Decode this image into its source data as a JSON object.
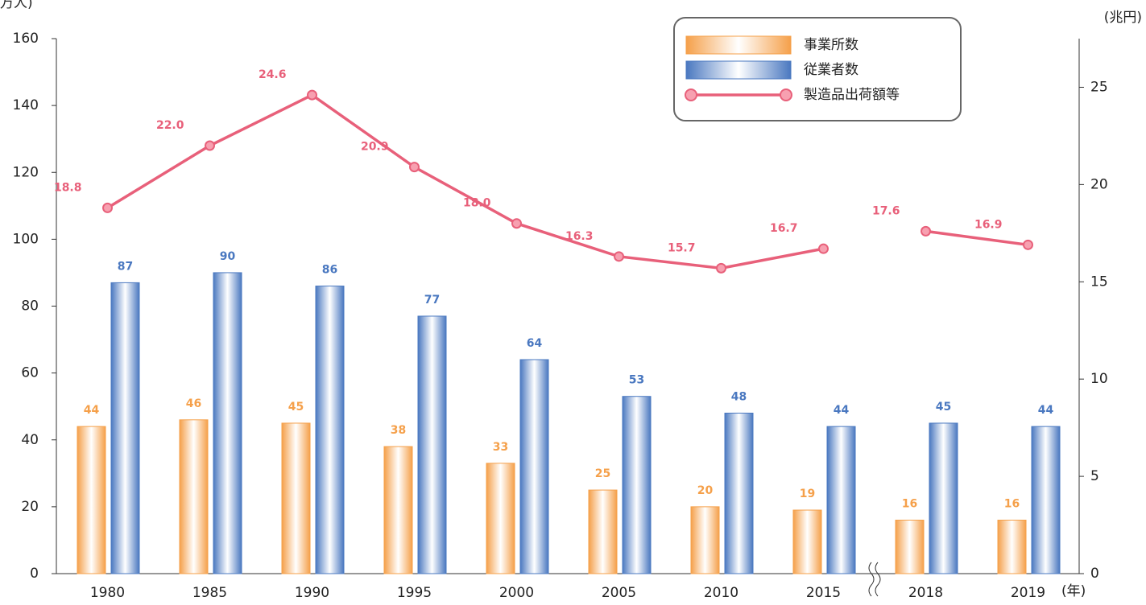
{
  "chart_data": {
    "type": "bar",
    "y_label": "万人)",
    "y2_label": "(兆円)",
    "x_unit": "(年)",
    "categories": [
      "1980",
      "1985",
      "1990",
      "1995",
      "2000",
      "2005",
      "2010",
      "2015",
      "2018",
      "2019"
    ],
    "x_break_after": "2015",
    "series": [
      {
        "name": "事業所数",
        "type": "bar",
        "color": "#f5a04a",
        "values": [
          44,
          46,
          45,
          38,
          33,
          25,
          20,
          19,
          16,
          16
        ]
      },
      {
        "name": "従業者数",
        "type": "bar",
        "color": "#4a78c0",
        "values": [
          87,
          90,
          86,
          77,
          64,
          53,
          48,
          44,
          45,
          44
        ]
      },
      {
        "name": "製造品出荷額等",
        "type": "line",
        "axis": "y2",
        "color": "#e8607a",
        "values": [
          18.8,
          22.0,
          24.6,
          20.9,
          18.0,
          16.3,
          15.7,
          16.7,
          17.6,
          16.9
        ],
        "value_labels": [
          "18.8",
          "22.0",
          "24.6",
          "20.9",
          "18.0",
          "16.3",
          "15.7",
          "16.7",
          "17.6",
          "16.9"
        ]
      }
    ],
    "ylim": [
      0,
      160
    ],
    "yticks": [
      0,
      20,
      40,
      60,
      80,
      100,
      120,
      140,
      160
    ],
    "y2lim": [
      0,
      27.5
    ],
    "y2ticks": [
      0,
      5,
      10,
      15,
      20,
      25
    ],
    "grid": false,
    "legend": "top-right"
  }
}
